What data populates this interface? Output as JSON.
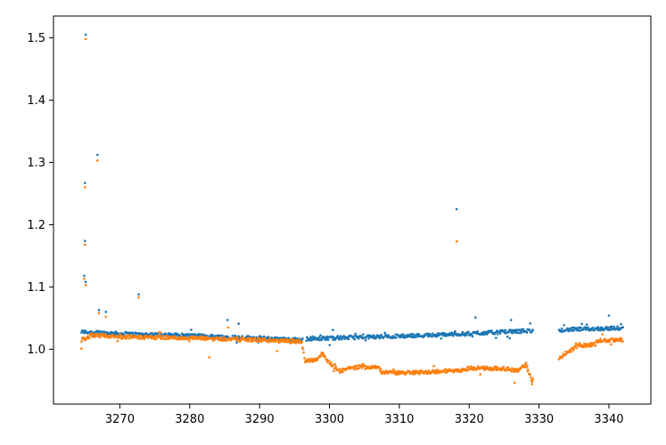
{
  "chart_data": {
    "type": "scatter",
    "title": "",
    "xlabel": "",
    "ylabel": "",
    "xlim": [
      3260.5,
      3346
    ],
    "ylim": [
      0.912,
      1.535
    ],
    "grid": false,
    "x_ticks": [
      3270,
      3280,
      3290,
      3300,
      3310,
      3320,
      3330,
      3340
    ],
    "y_ticks": [
      1.0,
      1.1,
      1.2,
      1.3,
      1.4,
      1.5
    ],
    "x_tick_labels": [
      "3270",
      "3280",
      "3290",
      "3300",
      "3310",
      "3320",
      "3330",
      "3340"
    ],
    "y_tick_labels": [
      "1.0",
      "1.1",
      "1.2",
      "1.3",
      "1.4",
      "1.5"
    ],
    "series": [
      {
        "color": "#1f77b4",
        "trend": [
          [
            3264.5,
            1.028
          ],
          [
            3270,
            1.025
          ],
          [
            3280,
            1.022
          ],
          [
            3290,
            1.018
          ],
          [
            3296,
            1.015
          ],
          [
            3297,
            1.017
          ],
          [
            3300,
            1.018
          ],
          [
            3310,
            1.021
          ],
          [
            3320,
            1.025
          ],
          [
            3329,
            1.03
          ],
          [
            3333,
            1.031
          ],
          [
            3338,
            1.033
          ],
          [
            3342,
            1.034
          ]
        ],
        "gaps": [
          [
            3296.2,
            3296.6
          ],
          [
            3329.2,
            3332.8
          ]
        ],
        "x_range": [
          3264.5,
          3342
        ],
        "outliers": [
          [
            3265.1,
            1.505
          ],
          [
            3266.8,
            1.312
          ],
          [
            3265.0,
            1.267
          ],
          [
            3318.2,
            1.225
          ],
          [
            3265.0,
            1.174
          ],
          [
            3264.9,
            1.118
          ],
          [
            3265.1,
            1.108
          ],
          [
            3272.7,
            1.088
          ],
          [
            3267.0,
            1.063
          ],
          [
            3268.0,
            1.06
          ],
          [
            3320.9,
            1.051
          ],
          [
            3285.4,
            1.047
          ],
          [
            3340.0,
            1.054
          ],
          [
            3326.0,
            1.047
          ],
          [
            3287.0,
            1.041
          ],
          [
            3300.5,
            1.031
          ]
        ]
      },
      {
        "color": "#ff7f0e",
        "trend": [
          [
            3264.5,
            1.015
          ],
          [
            3266.0,
            1.022
          ],
          [
            3270,
            1.02
          ],
          [
            3280,
            1.018
          ],
          [
            3290,
            1.015
          ],
          [
            3296.0,
            1.012
          ],
          [
            3296.5,
            0.982
          ],
          [
            3298.0,
            0.983
          ],
          [
            3299.0,
            0.993
          ],
          [
            3300.0,
            0.978
          ],
          [
            3301.5,
            0.965
          ],
          [
            3303.0,
            0.97
          ],
          [
            3305,
            0.972
          ],
          [
            3307.0,
            0.972
          ],
          [
            3307.5,
            0.963
          ],
          [
            3310,
            0.962
          ],
          [
            3315,
            0.964
          ],
          [
            3319.5,
            0.967
          ],
          [
            3320.0,
            0.97
          ],
          [
            3325,
            0.969
          ],
          [
            3327.0,
            0.966
          ],
          [
            3328.0,
            0.975
          ],
          [
            3329.0,
            0.95
          ],
          [
            3333.0,
            0.985
          ],
          [
            3334.0,
            0.995
          ],
          [
            3335.5,
            1.005
          ],
          [
            3338.0,
            1.008
          ],
          [
            3338.5,
            1.014
          ],
          [
            3342,
            1.015
          ]
        ],
        "gaps": [
          [
            3329.2,
            3332.8
          ]
        ],
        "x_range": [
          3264.5,
          3342
        ],
        "outliers": [
          [
            3265.1,
            1.498
          ],
          [
            3266.8,
            1.303
          ],
          [
            3265.0,
            1.26
          ],
          [
            3318.2,
            1.173
          ],
          [
            3265.0,
            1.168
          ],
          [
            3264.9,
            1.113
          ],
          [
            3265.1,
            1.103
          ],
          [
            3272.7,
            1.083
          ],
          [
            3267.0,
            1.058
          ],
          [
            3268.0,
            1.052
          ],
          [
            3282.8,
            0.987
          ],
          [
            3264.5,
            1.001
          ],
          [
            3329.0,
            0.944
          ],
          [
            3326.5,
            0.946
          ],
          [
            3292.5,
            0.997
          ],
          [
            3285.5,
            1.035
          ]
        ]
      }
    ]
  }
}
